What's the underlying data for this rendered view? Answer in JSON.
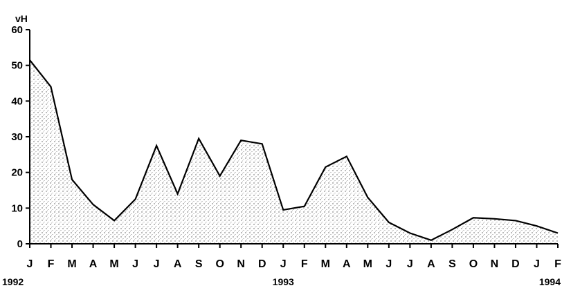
{
  "chart_data": {
    "type": "area",
    "ylabel": "vH",
    "ylim": [
      0,
      60
    ],
    "yticks": [
      "0",
      "10",
      "20",
      "30",
      "40",
      "50",
      "60"
    ],
    "x": [
      "J",
      "F",
      "M",
      "A",
      "M",
      "J",
      "J",
      "A",
      "S",
      "O",
      "N",
      "D",
      "J",
      "F",
      "M",
      "A",
      "M",
      "J",
      "J",
      "A",
      "S",
      "O",
      "N",
      "D",
      "J",
      "F"
    ],
    "year_labels": [
      {
        "label": "1992",
        "at_index": 0
      },
      {
        "label": "1993",
        "at_index": 12
      },
      {
        "label": "1994",
        "at_index": 25
      }
    ],
    "series": [
      {
        "values": [
          51.5,
          44,
          18,
          11,
          6.5,
          12.5,
          27.5,
          14,
          29.5,
          19,
          29,
          28,
          9.5,
          10.5,
          21.5,
          24.5,
          13,
          6,
          3,
          1,
          4,
          7.3,
          7,
          6.5,
          5,
          3
        ]
      }
    ],
    "grid": false,
    "fill": "stippled-gray",
    "line_color": "#000000"
  }
}
